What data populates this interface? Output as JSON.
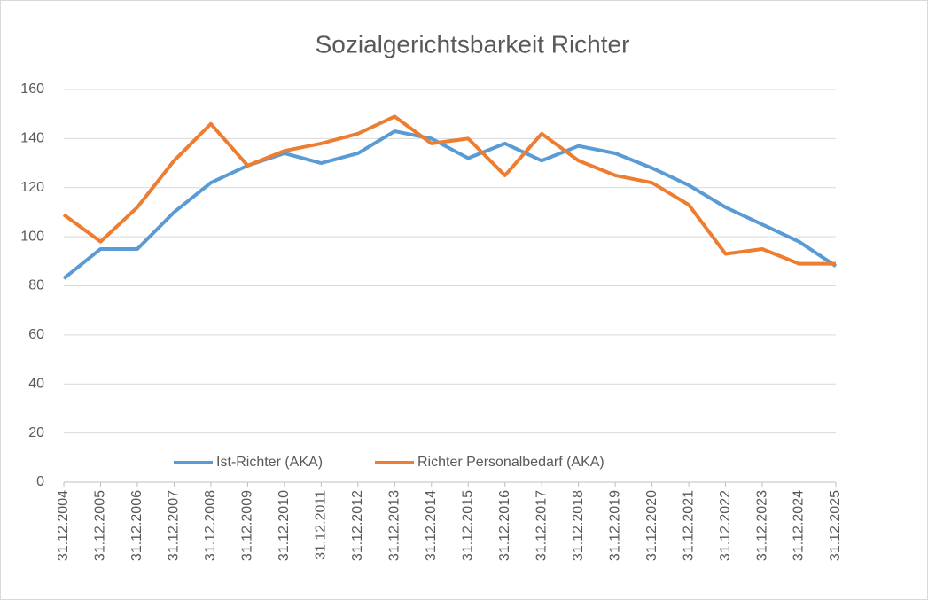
{
  "chart_data": {
    "type": "line",
    "title": "Sozialgerichtsbarkeit Richter",
    "categories": [
      "31.12.2004",
      "31.12.2005",
      "31.12.2006",
      "31.12.2007",
      "31.12.2008",
      "31.12.2009",
      "31.12.2010",
      "31.12.2011",
      "31.12.2012",
      "31.12.2013",
      "31.12.2014",
      "31.12.2015",
      "31.12.2016",
      "31.12.2017",
      "31.12.2018",
      "31.12.2019",
      "31.12.2020",
      "31.12.2021",
      "31.12.2022",
      "31.12.2023",
      "31.12.2024",
      "31.12.2025"
    ],
    "series": [
      {
        "name": "Ist-Richter (AKA)",
        "color": "#5b9bd5",
        "values": [
          83,
          95,
          95,
          110,
          122,
          129,
          134,
          130,
          134,
          143,
          140,
          132,
          138,
          131,
          137,
          134,
          128,
          121,
          112,
          105,
          98,
          88
        ]
      },
      {
        "name": "Richter Personalbedarf (AKA)",
        "color": "#ed7d31",
        "values": [
          109,
          98,
          112,
          131,
          146,
          129,
          135,
          138,
          142,
          149,
          138,
          140,
          125,
          142,
          131,
          125,
          122,
          113,
          93,
          95,
          89,
          89
        ]
      }
    ],
    "ylim": [
      0,
      160
    ],
    "yticks": [
      0,
      20,
      40,
      60,
      80,
      100,
      120,
      140,
      160
    ],
    "grid": true,
    "legend": "bottom"
  }
}
